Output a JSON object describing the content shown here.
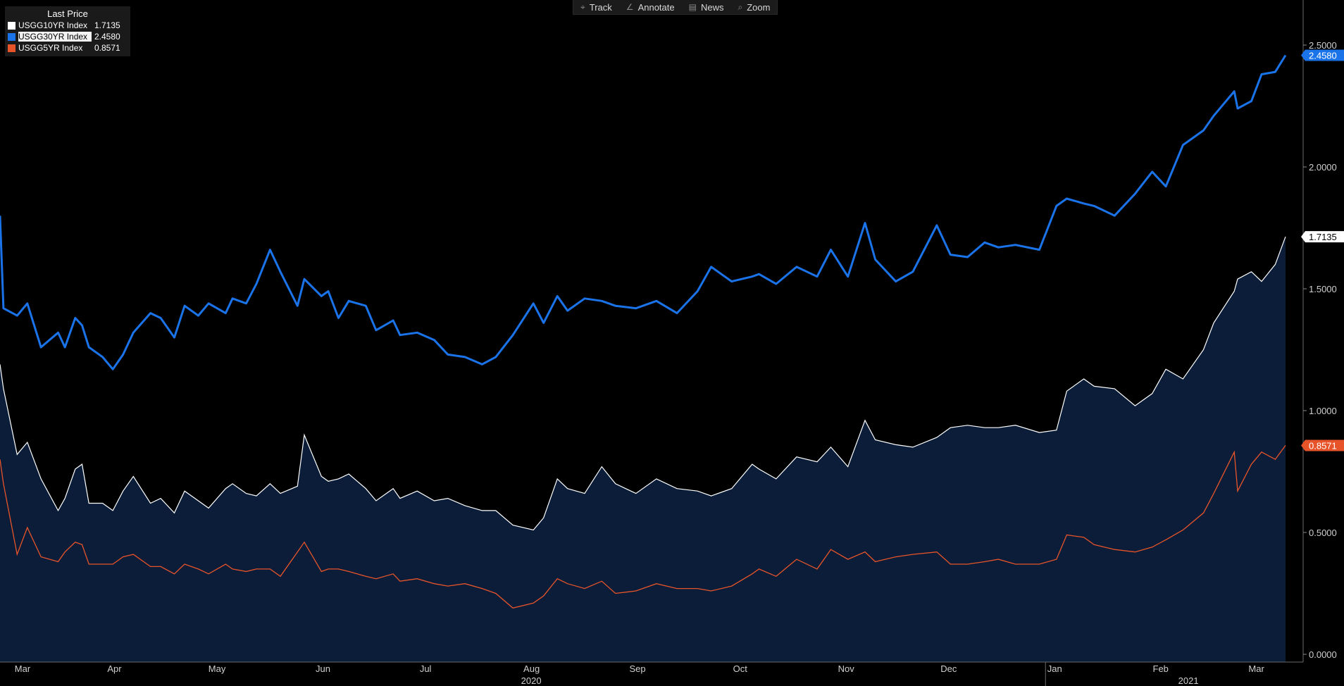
{
  "toolbar": {
    "items": [
      {
        "label": "Track",
        "icon": "crosshair-icon",
        "glyph": "⌖"
      },
      {
        "label": "Annotate",
        "icon": "pencil-icon",
        "glyph": "∠"
      },
      {
        "label": "News",
        "icon": "news-icon",
        "glyph": "▤"
      },
      {
        "label": "Zoom",
        "icon": "magnifier-icon",
        "glyph": "⌕"
      }
    ]
  },
  "legend": {
    "title": "Last Price",
    "entries": [
      {
        "name": "USGG10YR Index",
        "value": "1.7135",
        "color": "#ffffff"
      },
      {
        "name": "USGG30YR Index",
        "value": "2.4580",
        "color": "#1a73e8"
      },
      {
        "name": "USGG5YR Index",
        "value": "0.8571",
        "color": "#e8542a"
      }
    ]
  },
  "chart_data": {
    "type": "line",
    "x": [
      "2020-03-01",
      "2020-03-02",
      "2020-03-06",
      "2020-03-09",
      "2020-03-13",
      "2020-03-18",
      "2020-03-20",
      "2020-03-23",
      "2020-03-25",
      "2020-03-27",
      "2020-03-31",
      "2020-04-03",
      "2020-04-06",
      "2020-04-09",
      "2020-04-14",
      "2020-04-17",
      "2020-04-21",
      "2020-04-24",
      "2020-04-28",
      "2020-05-01",
      "2020-05-06",
      "2020-05-08",
      "2020-05-12",
      "2020-05-15",
      "2020-05-19",
      "2020-05-22",
      "2020-05-27",
      "2020-05-29",
      "2020-06-03",
      "2020-06-05",
      "2020-06-08",
      "2020-06-11",
      "2020-06-16",
      "2020-06-19",
      "2020-06-24",
      "2020-06-26",
      "2020-07-01",
      "2020-07-06",
      "2020-07-10",
      "2020-07-15",
      "2020-07-20",
      "2020-07-24",
      "2020-07-29",
      "2020-08-04",
      "2020-08-07",
      "2020-08-11",
      "2020-08-14",
      "2020-08-19",
      "2020-08-24",
      "2020-08-28",
      "2020-09-03",
      "2020-09-09",
      "2020-09-15",
      "2020-09-21",
      "2020-09-25",
      "2020-10-01",
      "2020-10-07",
      "2020-10-09",
      "2020-10-14",
      "2020-10-20",
      "2020-10-26",
      "2020-10-30",
      "2020-11-04",
      "2020-11-09",
      "2020-11-12",
      "2020-11-18",
      "2020-11-23",
      "2020-11-30",
      "2020-12-04",
      "2020-12-09",
      "2020-12-14",
      "2020-12-18",
      "2020-12-23",
      "2020-12-30",
      "2021-01-04",
      "2021-01-07",
      "2021-01-12",
      "2021-01-15",
      "2021-01-21",
      "2021-01-27",
      "2021-02-01",
      "2021-02-05",
      "2021-02-10",
      "2021-02-16",
      "2021-02-19",
      "2021-02-25",
      "2021-02-26",
      "2021-03-02",
      "2021-03-05",
      "2021-03-09",
      "2021-03-12"
    ],
    "series": [
      {
        "name": "USGG10YR Index",
        "color": "#ffffff",
        "values": [
          1.19,
          1.09,
          0.82,
          0.87,
          0.72,
          0.59,
          0.64,
          0.76,
          0.78,
          0.62,
          0.62,
          0.59,
          0.67,
          0.73,
          0.62,
          0.64,
          0.58,
          0.67,
          0.63,
          0.6,
          0.68,
          0.7,
          0.66,
          0.65,
          0.7,
          0.66,
          0.69,
          0.9,
          0.73,
          0.71,
          0.72,
          0.74,
          0.68,
          0.63,
          0.68,
          0.64,
          0.67,
          0.63,
          0.64,
          0.61,
          0.59,
          0.59,
          0.53,
          0.51,
          0.56,
          0.72,
          0.68,
          0.66,
          0.77,
          0.7,
          0.66,
          0.72,
          0.68,
          0.67,
          0.65,
          0.68,
          0.78,
          0.76,
          0.72,
          0.81,
          0.79,
          0.85,
          0.77,
          0.96,
          0.88,
          0.86,
          0.85,
          0.89,
          0.93,
          0.94,
          0.93,
          0.93,
          0.94,
          0.91,
          0.92,
          1.08,
          1.13,
          1.1,
          1.09,
          1.02,
          1.07,
          1.17,
          1.13,
          1.25,
          1.36,
          1.49,
          1.54,
          1.57,
          1.53,
          1.6,
          1.7135
        ]
      },
      {
        "name": "USGG30YR Index",
        "color": "#1a73e8",
        "values": [
          1.8,
          1.42,
          1.39,
          1.44,
          1.26,
          1.32,
          1.26,
          1.38,
          1.35,
          1.26,
          1.22,
          1.17,
          1.23,
          1.32,
          1.4,
          1.38,
          1.3,
          1.43,
          1.39,
          1.44,
          1.4,
          1.46,
          1.44,
          1.52,
          1.66,
          1.57,
          1.43,
          1.54,
          1.47,
          1.49,
          1.38,
          1.45,
          1.43,
          1.33,
          1.37,
          1.31,
          1.32,
          1.29,
          1.23,
          1.22,
          1.19,
          1.22,
          1.31,
          1.44,
          1.36,
          1.47,
          1.41,
          1.46,
          1.45,
          1.43,
          1.42,
          1.45,
          1.4,
          1.49,
          1.59,
          1.53,
          1.55,
          1.56,
          1.52,
          1.59,
          1.55,
          1.66,
          1.55,
          1.77,
          1.62,
          1.53,
          1.57,
          1.76,
          1.64,
          1.63,
          1.69,
          1.67,
          1.68,
          1.66,
          1.84,
          1.87,
          1.85,
          1.84,
          1.8,
          1.89,
          1.98,
          1.92,
          2.09,
          2.15,
          2.21,
          2.31,
          2.24,
          2.27,
          2.38,
          2.39,
          2.458
        ]
      },
      {
        "name": "USGG5YR Index",
        "color": "#e8542a",
        "values": [
          0.8,
          0.7,
          0.41,
          0.52,
          0.4,
          0.38,
          0.42,
          0.46,
          0.45,
          0.37,
          0.37,
          0.37,
          0.4,
          0.41,
          0.36,
          0.36,
          0.33,
          0.37,
          0.35,
          0.33,
          0.37,
          0.35,
          0.34,
          0.35,
          0.35,
          0.32,
          0.42,
          0.46,
          0.34,
          0.35,
          0.35,
          0.34,
          0.32,
          0.31,
          0.33,
          0.3,
          0.31,
          0.29,
          0.28,
          0.29,
          0.27,
          0.25,
          0.19,
          0.21,
          0.24,
          0.31,
          0.29,
          0.27,
          0.3,
          0.25,
          0.26,
          0.29,
          0.27,
          0.27,
          0.26,
          0.28,
          0.33,
          0.35,
          0.32,
          0.39,
          0.35,
          0.43,
          0.39,
          0.42,
          0.38,
          0.4,
          0.41,
          0.42,
          0.37,
          0.37,
          0.38,
          0.39,
          0.37,
          0.37,
          0.39,
          0.49,
          0.48,
          0.45,
          0.43,
          0.42,
          0.44,
          0.47,
          0.51,
          0.58,
          0.66,
          0.83,
          0.67,
          0.78,
          0.83,
          0.8,
          0.8571
        ]
      }
    ],
    "y_ticks": [
      "0.0000",
      "0.5000",
      "1.0000",
      "1.5000",
      "2.0000",
      "2.5000"
    ],
    "ylim": [
      0,
      2.7
    ],
    "month_labels": [
      {
        "label": "Mar",
        "date": "2020-03-01"
      },
      {
        "label": "Apr",
        "date": "2020-04-01"
      },
      {
        "label": "May",
        "date": "2020-05-01"
      },
      {
        "label": "Jun",
        "date": "2020-06-01"
      },
      {
        "label": "Jul",
        "date": "2020-07-01"
      },
      {
        "label": "Aug",
        "date": "2020-08-01"
      },
      {
        "label": "Sep",
        "date": "2020-09-01"
      },
      {
        "label": "Oct",
        "date": "2020-10-01"
      },
      {
        "label": "Nov",
        "date": "2020-11-01"
      },
      {
        "label": "Dec",
        "date": "2020-12-01"
      },
      {
        "label": "Jan",
        "date": "2021-01-01"
      },
      {
        "label": "Feb",
        "date": "2021-02-01"
      },
      {
        "label": "Mar",
        "date": "2021-03-01"
      }
    ],
    "year_labels": [
      "2020",
      "2021"
    ],
    "last_value_labels": [
      {
        "series": "USGG30YR Index",
        "text": "2.4580",
        "bg": "#1a73e8",
        "fg": "#ffffff"
      },
      {
        "series": "USGG10YR Index",
        "text": "1.7135",
        "bg": "#ffffff",
        "fg": "#000000"
      },
      {
        "series": "USGG5YR Index",
        "text": "0.8571",
        "bg": "#e8542a",
        "fg": "#ffffff"
      }
    ],
    "area_fill_series": "USGG10YR Index",
    "area_fill_color": "#0b1d38",
    "grid": false,
    "legend_position": "top-left"
  }
}
